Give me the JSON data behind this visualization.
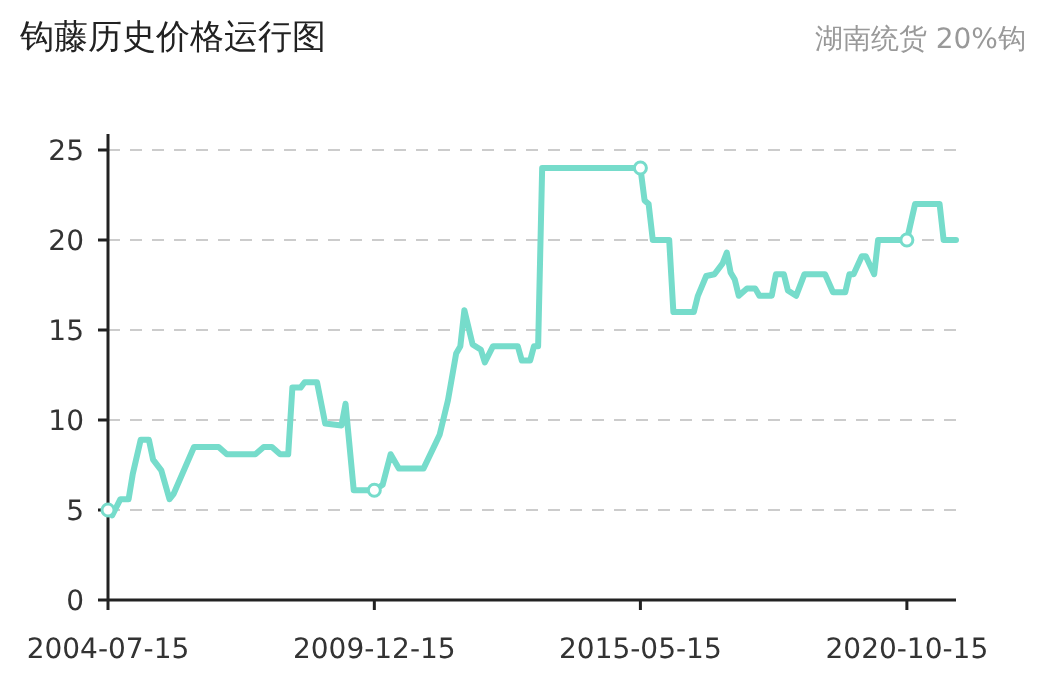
{
  "chart_data": {
    "type": "line",
    "title": "钩藤历史价格运行图",
    "subtitle": "湖南统货 20%钩",
    "xlim": [
      "2004-07-15",
      "2021-10"
    ],
    "xticks": [
      "2004-07-15",
      "2009-12-15",
      "2015-05-15",
      "2020-10-15"
    ],
    "ylim": [
      0,
      25
    ],
    "yticks": [
      0,
      5,
      10,
      15,
      20,
      25
    ],
    "grid": "y",
    "line_style": "solid",
    "series": [
      {
        "color": "#76dccb",
        "x": [
          "2004-07-15",
          "2004-08",
          "2004-10",
          "2004-12",
          "2005-01",
          "2005-03",
          "2005-05",
          "2005-06",
          "2005-08",
          "2005-10",
          "2005-11",
          "2006-04",
          "2006-10",
          "2006-12",
          "2007-07",
          "2007-09",
          "2007-11",
          "2008-01",
          "2008-03",
          "2008-04",
          "2008-06",
          "2008-07",
          "2008-10",
          "2008-12",
          "2009-04",
          "2009-05",
          "2009-07",
          "2009-12-15",
          "2010-02",
          "2010-04",
          "2010-06",
          "2010-12",
          "2011-03",
          "2011-04",
          "2011-06",
          "2011-08",
          "2011-09",
          "2011-10",
          "2011-12",
          "2012-02",
          "2012-03",
          "2012-05",
          "2012-11",
          "2012-12",
          "2013-02",
          "2013-03",
          "2013-04",
          "2013-05",
          "2015-05-15",
          "2015-06",
          "2015-07",
          "2015-08",
          "2015-12",
          "2016-01",
          "2016-06",
          "2016-07",
          "2016-09",
          "2016-11",
          "2017-01",
          "2017-02",
          "2017-03",
          "2017-04",
          "2017-05",
          "2017-07",
          "2017-09",
          "2017-10",
          "2018-01",
          "2018-02",
          "2018-04",
          "2018-05",
          "2018-07",
          "2018-09",
          "2019-02",
          "2019-04",
          "2019-07",
          "2019-08",
          "2019-09",
          "2019-11",
          "2019-12",
          "2020-02",
          "2020-03",
          "2020-10-15",
          "2020-12",
          "2021-06",
          "2021-07",
          "2021-10"
        ],
        "values": [
          5,
          4.7,
          5.6,
          5.6,
          7,
          8.9,
          8.9,
          7.8,
          7.2,
          5.6,
          5.9,
          8.5,
          8.5,
          8.1,
          8.1,
          8.5,
          8.5,
          8.1,
          8.1,
          11.8,
          11.8,
          12.1,
          12.1,
          9.8,
          9.7,
          10.9,
          6.1,
          6.1,
          6.4,
          8.1,
          7.3,
          7.3,
          8.7,
          9.2,
          11.1,
          13.7,
          14.1,
          16.1,
          14.2,
          13.9,
          13.2,
          14.1,
          14.1,
          13.3,
          13.3,
          14.1,
          14.1,
          24,
          24,
          22.2,
          22,
          20,
          20,
          16,
          16,
          16.9,
          18,
          18.1,
          18.7,
          19.3,
          18.2,
          17.8,
          16.9,
          17.3,
          17.3,
          16.9,
          16.9,
          18.1,
          18.1,
          17.2,
          16.9,
          18.1,
          18.1,
          17.1,
          17.1,
          18.1,
          18.1,
          19.1,
          19.1,
          18.1,
          20,
          20,
          22,
          22,
          20,
          20
        ]
      },
      {
        "type": "scatter",
        "color": "#76dccb",
        "marker": "circle",
        "x": [
          "2004-07-15",
          "2009-12-15",
          "2015-05-15",
          "2020-10-15"
        ],
        "values": [
          5,
          6.1,
          24,
          20
        ]
      }
    ]
  }
}
